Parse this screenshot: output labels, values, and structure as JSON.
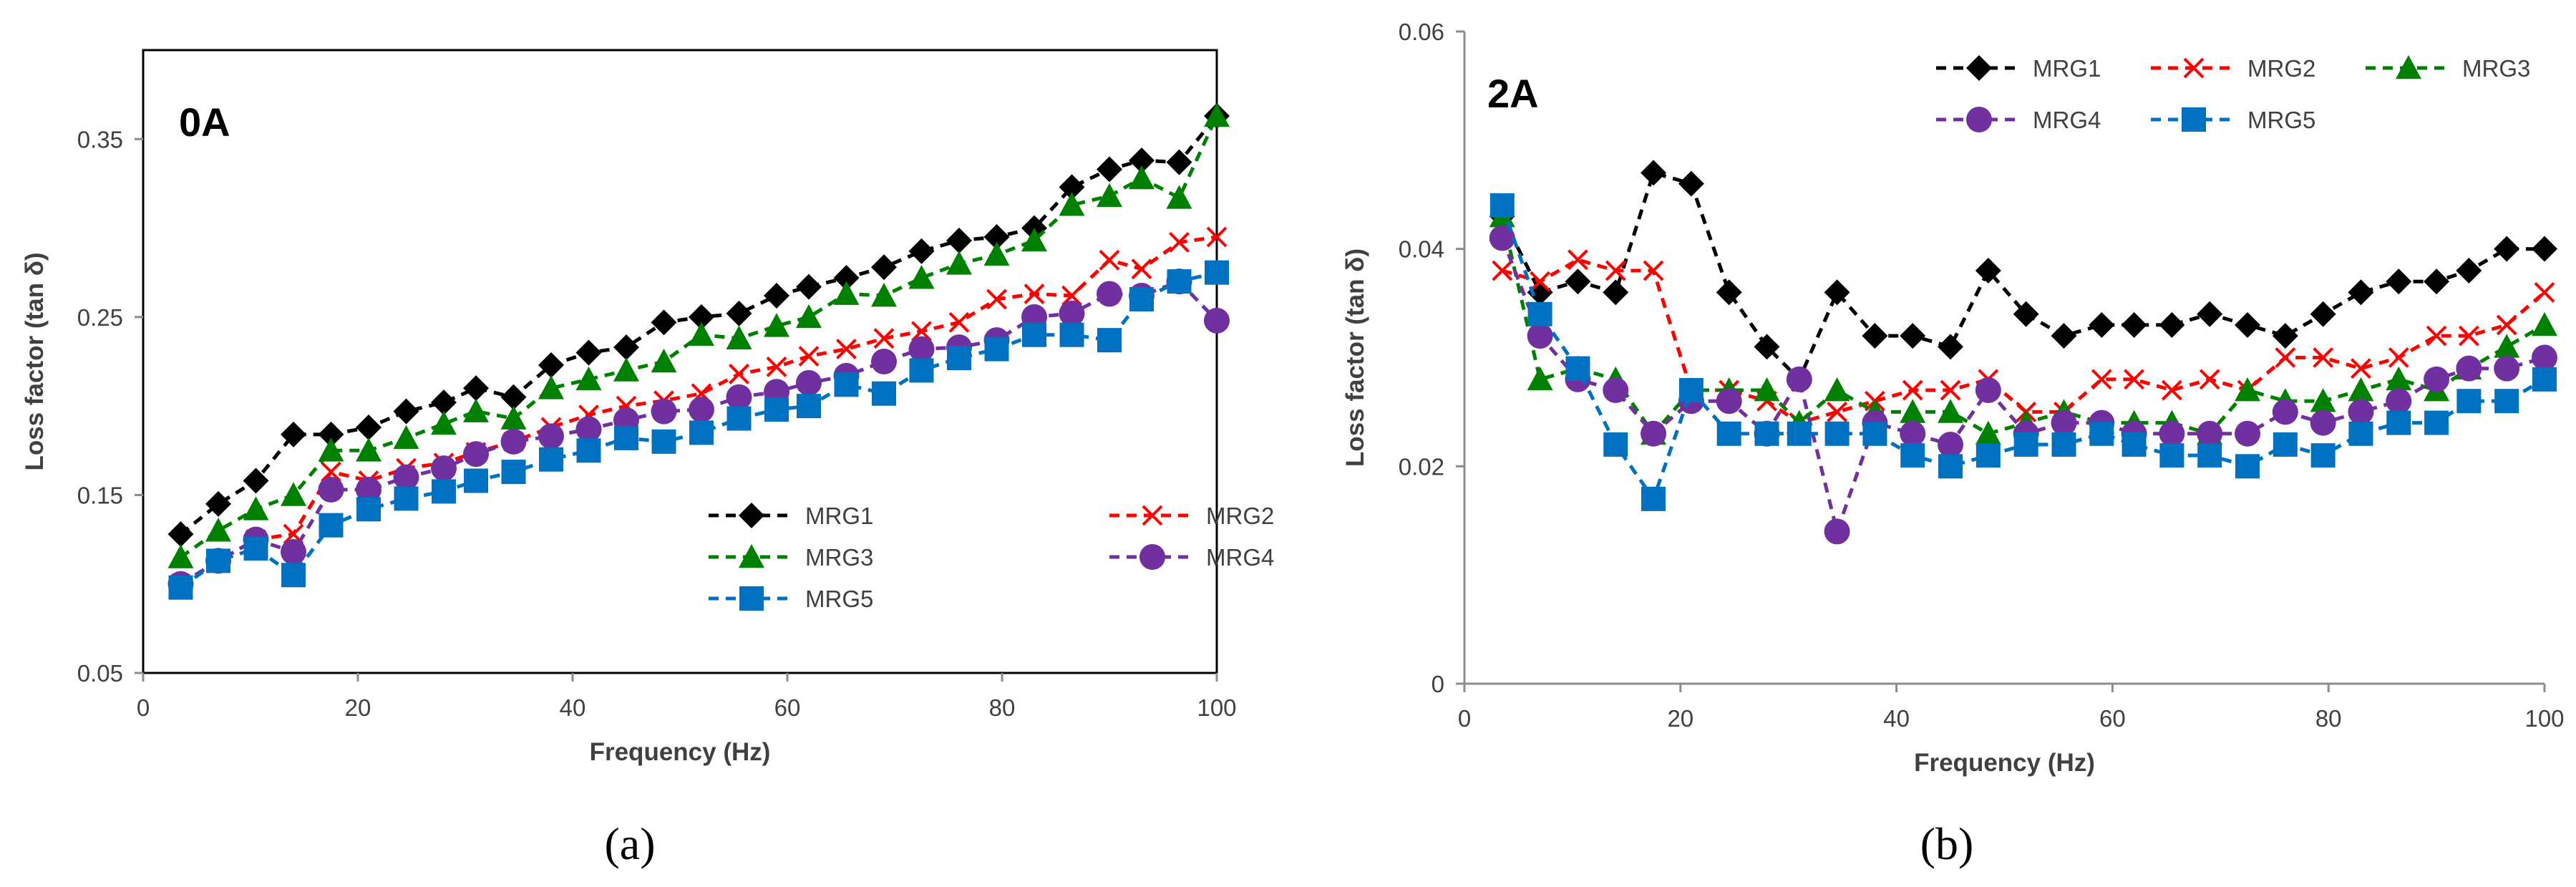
{
  "chart_data": [
    {
      "type": "line",
      "panel_label": "0A",
      "caption": "(a)",
      "xlabel": "Frequency (Hz)",
      "ylabel": "Loss factor (tan δ)",
      "xlim": [
        0,
        100
      ],
      "ylim": [
        0.05,
        0.4
      ],
      "xticks": [
        0,
        20,
        40,
        60,
        80,
        100
      ],
      "yticks": [
        0.05,
        0.15,
        0.25,
        0.35
      ],
      "ytick_labels": [
        "0.05",
        "0.15",
        "0.25",
        "0.35"
      ],
      "grid": false,
      "legend_position": "bottom-right",
      "x": [
        3.5,
        7,
        10.5,
        14,
        17.5,
        21,
        24.5,
        28,
        31,
        34.5,
        38,
        41.5,
        45,
        48.5,
        52,
        55.5,
        59,
        62,
        65.5,
        69,
        72.5,
        76,
        79.5,
        83,
        86.5,
        90,
        93,
        96.5,
        100
      ],
      "series": [
        {
          "name": "MRG1",
          "color": "#000000",
          "marker": "diamond",
          "values": [
            0.128,
            0.145,
            0.158,
            0.184,
            0.184,
            0.188,
            0.197,
            0.202,
            0.21,
            0.205,
            0.223,
            0.23,
            0.233,
            0.247,
            0.25,
            0.252,
            0.262,
            0.267,
            0.272,
            0.278,
            0.287,
            0.293,
            0.295,
            0.3,
            0.323,
            0.333,
            0.338,
            0.337,
            0.363
          ]
        },
        {
          "name": "MRG2",
          "color": "#ff0000",
          "marker": "x",
          "values": [
            0.1,
            0.113,
            0.125,
            0.128,
            0.163,
            0.158,
            0.165,
            0.168,
            0.174,
            0.18,
            0.188,
            0.195,
            0.2,
            0.203,
            0.207,
            0.218,
            0.222,
            0.228,
            0.232,
            0.238,
            0.242,
            0.247,
            0.26,
            0.263,
            0.262,
            0.282,
            0.277,
            0.292,
            0.295
          ]
        },
        {
          "name": "MRG3",
          "color": "#008000",
          "marker": "triangle",
          "values": [
            0.115,
            0.13,
            0.142,
            0.15,
            0.175,
            0.175,
            0.182,
            0.19,
            0.197,
            0.193,
            0.21,
            0.215,
            0.22,
            0.225,
            0.24,
            0.238,
            0.245,
            0.25,
            0.263,
            0.262,
            0.272,
            0.28,
            0.285,
            0.293,
            0.313,
            0.318,
            0.328,
            0.317,
            0.363
          ]
        },
        {
          "name": "MRG4",
          "color": "#7030a0",
          "marker": "circle",
          "values": [
            0.1,
            0.113,
            0.125,
            0.118,
            0.153,
            0.153,
            0.16,
            0.165,
            0.173,
            0.18,
            0.183,
            0.187,
            0.192,
            0.197,
            0.198,
            0.205,
            0.208,
            0.213,
            0.217,
            0.225,
            0.232,
            0.233,
            0.237,
            0.25,
            0.252,
            0.263,
            0.262,
            0.27,
            0.248
          ]
        },
        {
          "name": "MRG5",
          "color": "#0070c0",
          "marker": "square",
          "values": [
            0.098,
            0.113,
            0.12,
            0.105,
            0.133,
            0.142,
            0.148,
            0.152,
            0.158,
            0.163,
            0.17,
            0.175,
            0.182,
            0.18,
            0.185,
            0.193,
            0.198,
            0.2,
            0.212,
            0.207,
            0.22,
            0.227,
            0.232,
            0.24,
            0.24,
            0.237,
            0.26,
            0.27,
            0.275
          ]
        }
      ]
    },
    {
      "type": "line",
      "panel_label": "2A",
      "caption": "(b)",
      "xlabel": "Frequency (Hz)",
      "ylabel": "Loss factor (tan δ)",
      "xlim": [
        0,
        100
      ],
      "ylim": [
        0,
        0.06
      ],
      "xticks": [
        0,
        20,
        40,
        60,
        80,
        100
      ],
      "yticks": [
        0,
        0.02,
        0.04,
        0.06
      ],
      "ytick_labels": [
        "0",
        "0.02",
        "0.04",
        "0.06"
      ],
      "grid": false,
      "legend_position": "top-right",
      "x": [
        3.5,
        7,
        10.5,
        14,
        17.5,
        21,
        24.5,
        28,
        31,
        34.5,
        38,
        41.5,
        45,
        48.5,
        52,
        55.5,
        59,
        62,
        65.5,
        69,
        72.5,
        76,
        79.5,
        83,
        86.5,
        90,
        93,
        96.5,
        100
      ],
      "series": [
        {
          "name": "MRG1",
          "color": "#000000",
          "marker": "diamond",
          "values": [
            0.043,
            0.036,
            0.037,
            0.036,
            0.047,
            0.046,
            0.036,
            0.031,
            0.028,
            0.036,
            0.032,
            0.032,
            0.031,
            0.038,
            0.034,
            0.032,
            0.033,
            0.033,
            0.033,
            0.034,
            0.033,
            0.032,
            0.034,
            0.036,
            0.037,
            0.037,
            0.038,
            0.04,
            0.04
          ]
        },
        {
          "name": "MRG2",
          "color": "#ff0000",
          "marker": "x",
          "values": [
            0.038,
            0.037,
            0.039,
            0.038,
            0.038,
            0.027,
            0.027,
            0.026,
            0.024,
            0.025,
            0.026,
            0.027,
            0.027,
            0.028,
            0.025,
            0.025,
            0.028,
            0.028,
            0.027,
            0.028,
            0.027,
            0.03,
            0.03,
            0.029,
            0.03,
            0.032,
            0.032,
            0.033,
            0.036
          ]
        },
        {
          "name": "MRG3",
          "color": "#008000",
          "marker": "triangle",
          "values": [
            0.043,
            0.028,
            0.029,
            0.028,
            0.023,
            0.027,
            0.027,
            0.027,
            0.024,
            0.027,
            0.025,
            0.025,
            0.025,
            0.023,
            0.024,
            0.025,
            0.024,
            0.024,
            0.024,
            0.023,
            0.027,
            0.026,
            0.026,
            0.027,
            0.028,
            0.027,
            0.029,
            0.031,
            0.033
          ]
        },
        {
          "name": "MRG4",
          "color": "#7030a0",
          "marker": "circle",
          "values": [
            0.041,
            0.032,
            0.028,
            0.027,
            0.023,
            0.026,
            0.026,
            0.023,
            0.028,
            0.014,
            0.024,
            0.023,
            0.022,
            0.027,
            0.023,
            0.024,
            0.024,
            0.023,
            0.023,
            0.023,
            0.023,
            0.025,
            0.024,
            0.025,
            0.026,
            0.028,
            0.029,
            0.029,
            0.03
          ]
        },
        {
          "name": "MRG5",
          "color": "#0070c0",
          "marker": "square",
          "values": [
            0.044,
            0.034,
            0.029,
            0.022,
            0.017,
            0.027,
            0.023,
            0.023,
            0.023,
            0.023,
            0.023,
            0.021,
            0.02,
            0.021,
            0.022,
            0.022,
            0.023,
            0.022,
            0.021,
            0.021,
            0.02,
            0.022,
            0.021,
            0.023,
            0.024,
            0.024,
            0.026,
            0.026,
            0.028
          ]
        }
      ]
    }
  ]
}
